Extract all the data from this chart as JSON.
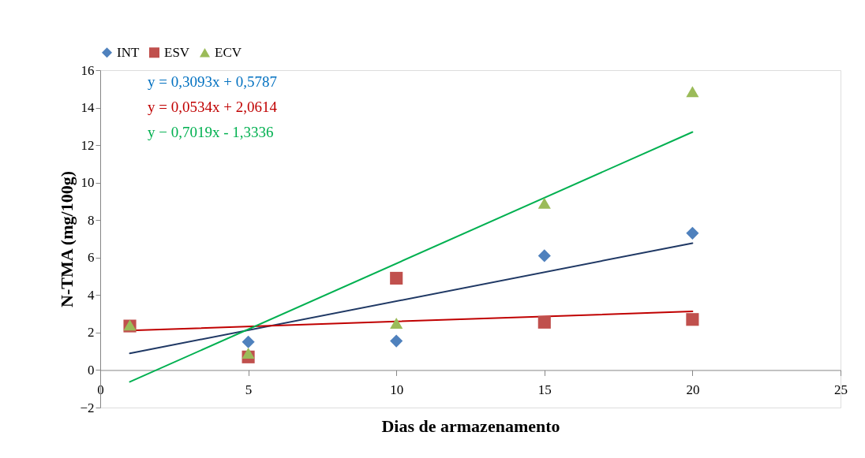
{
  "chart_data": {
    "type": "scatter",
    "xlabel": "Dias de armazenamento",
    "ylabel": "N-TMA (mg/100g)",
    "xlim": [
      0,
      25
    ],
    "xticks": [
      0,
      5,
      10,
      15,
      20,
      25
    ],
    "ylim": [
      -2,
      16
    ],
    "yticks": [
      -2,
      0,
      2,
      4,
      6,
      8,
      10,
      12,
      14,
      16
    ],
    "legend": "top",
    "series": [
      {
        "name": "INT",
        "marker": "diamond",
        "color": "#4f81bd",
        "x": [
          5,
          10,
          15,
          20
        ],
        "values": [
          1.5,
          1.55,
          6.1,
          7.3
        ]
      },
      {
        "name": "ESV",
        "marker": "square",
        "color": "#c0504d",
        "x": [
          1,
          5,
          10,
          15,
          20
        ],
        "values": [
          2.35,
          0.7,
          4.9,
          2.55,
          2.7
        ]
      },
      {
        "name": "ECV",
        "marker": "triangle",
        "color": "#9bbb59",
        "x": [
          1,
          5,
          10,
          15,
          20
        ],
        "values": [
          2.4,
          0.9,
          2.5,
          8.9,
          14.85
        ]
      },
      {
        "type": "line",
        "color": "#1f3864",
        "x": [
          1,
          20
        ],
        "values": [
          0.89,
          6.77
        ]
      },
      {
        "type": "line",
        "color": "#c00000",
        "x": [
          1,
          20
        ],
        "values": [
          2.11,
          3.13
        ]
      },
      {
        "type": "line",
        "color": "#00b050",
        "x": [
          1,
          20
        ],
        "values": [
          -0.63,
          12.7
        ]
      }
    ],
    "annotations": [
      "y = 0,3093x + 0,5787",
      "y = 0,0534x + 2,0614",
      "y − 0,7019x - 1,3336"
    ]
  }
}
